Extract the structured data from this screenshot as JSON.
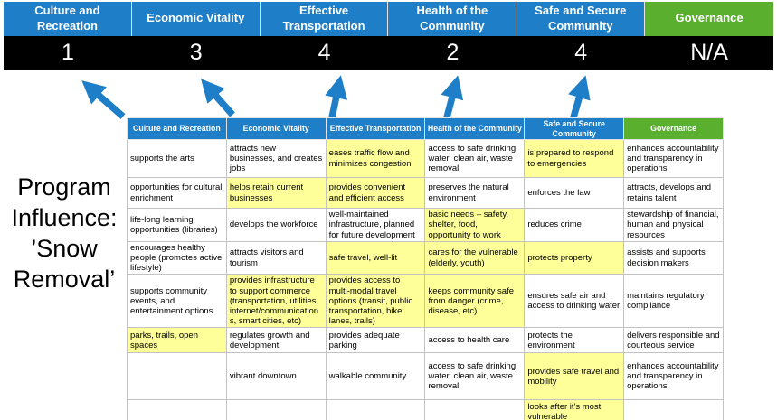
{
  "title": "Program Influence: ’Snow Removal’",
  "colors": {
    "blue": "#1E7EC7",
    "green": "#5AAF2F",
    "yellow": "#FFFF99",
    "score-bg": "#000000"
  },
  "score_banner": {
    "columns": [
      {
        "label": "Culture and Recreation",
        "score": "1",
        "theme": "blue"
      },
      {
        "label": "Economic Vitality",
        "score": "3",
        "theme": "blue"
      },
      {
        "label": "Effective Transportation",
        "score": "4",
        "theme": "blue"
      },
      {
        "label": "Health of the Community",
        "score": "2",
        "theme": "blue"
      },
      {
        "label": "Safe and Secure Community",
        "score": "4",
        "theme": "blue"
      },
      {
        "label": "Governance",
        "score": "N/A",
        "theme": "green"
      }
    ]
  },
  "matrix": {
    "headers": [
      {
        "label": "Culture and Recreation",
        "theme": "blue"
      },
      {
        "label": "Economic Vitality",
        "theme": "blue"
      },
      {
        "label": "Effective Transportation",
        "theme": "blue"
      },
      {
        "label": "Health of the Community",
        "theme": "blue"
      },
      {
        "label": "Safe and Secure Community",
        "theme": "blue"
      },
      {
        "label": "Governance",
        "theme": "green"
      }
    ],
    "rows": [
      [
        {
          "text": "supports the arts",
          "hl": false
        },
        {
          "text": "attracts new businesses, and creates jobs",
          "hl": false
        },
        {
          "text": "eases traffic flow and minimizes congestion",
          "hl": true
        },
        {
          "text": "access to safe drinking water, clean air, waste removal",
          "hl": false
        },
        {
          "text": "is prepared to respond to emergencies",
          "hl": true
        },
        {
          "text": "enhances accountability and transparency in operations",
          "hl": false
        }
      ],
      [
        {
          "text": "opportunities for cultural enrichment",
          "hl": false
        },
        {
          "text": "helps retain current businesses",
          "hl": true
        },
        {
          "text": "provides convenient and efficient access",
          "hl": true
        },
        {
          "text": "preserves the natural environment",
          "hl": false
        },
        {
          "text": "enforces the law",
          "hl": false
        },
        {
          "text": "attracts, develops and retains talent",
          "hl": false
        }
      ],
      [
        {
          "text": "life-long learning opportunities (libraries)",
          "hl": false
        },
        {
          "text": "develops the workforce",
          "hl": false
        },
        {
          "text": "well-maintained infrastructure, planned for future development",
          "hl": false
        },
        {
          "text": "basic needs – safety, shelter, food, opportunity to work",
          "hl": true
        },
        {
          "text": "reduces crime",
          "hl": false
        },
        {
          "text": "stewardship of financial, human and physical resources",
          "hl": false
        }
      ],
      [
        {
          "text": "encourages healthy people (promotes active lifestyle)",
          "hl": false
        },
        {
          "text": "attracts visitors and tourism",
          "hl": false
        },
        {
          "text": "safe travel, well-lit",
          "hl": true
        },
        {
          "text": "cares for the vulnerable (elderly, youth)",
          "hl": true
        },
        {
          "text": "protects property",
          "hl": true
        },
        {
          "text": "assists and supports decision makers",
          "hl": false
        }
      ],
      [
        {
          "text": "supports community events, and entertainment options",
          "hl": false
        },
        {
          "text": "provides infrastructure to support commerce (transportation, utilities, internet/communications, smart cities, etc)",
          "hl": true
        },
        {
          "text": "provides access to multi-modal travel options (transit, public transportation, bike lanes, trails)",
          "hl": true
        },
        {
          "text": "keeps community safe from danger (crime, disease, etc)",
          "hl": true
        },
        {
          "text": "ensures safe air and access to drinking water",
          "hl": false
        },
        {
          "text": "maintains regulatory compliance",
          "hl": false
        }
      ],
      [
        {
          "text": "parks, trails, open spaces",
          "hl": true
        },
        {
          "text": "regulates growth and development",
          "hl": false
        },
        {
          "text": "provides adequate parking",
          "hl": false
        },
        {
          "text": "access to health care",
          "hl": false
        },
        {
          "text": "protects the environment",
          "hl": false
        },
        {
          "text": "delivers responsible and courteous service",
          "hl": false
        }
      ],
      [
        {
          "text": "",
          "hl": false
        },
        {
          "text": "vibrant downtown",
          "hl": false
        },
        {
          "text": "walkable community",
          "hl": false
        },
        {
          "text": "access to safe drinking water, clean air, waste removal",
          "hl": false
        },
        {
          "text": "provides safe travel and mobility",
          "hl": true
        },
        {
          "text": "enhances accountability and transparency in operations",
          "hl": false
        }
      ],
      [
        {
          "text": "",
          "hl": false
        },
        {
          "text": "",
          "hl": false
        },
        {
          "text": "",
          "hl": false
        },
        {
          "text": "",
          "hl": false
        },
        {
          "text": "looks after it's most vulnerable",
          "hl": true
        },
        {
          "text": "",
          "hl": false
        }
      ]
    ]
  }
}
